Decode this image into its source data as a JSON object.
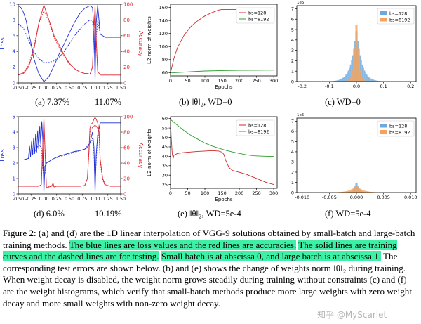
{
  "colors": {
    "blue": "#1f2fd8",
    "red": "#e0262f",
    "hist_blue": "#6fa8dc",
    "hist_orange": "#f5a35a",
    "line_red": "#d62728",
    "line_green": "#2ca02c",
    "highlight": "#3df0a6"
  },
  "panels": {
    "a": {
      "caption": "(a) 7.37%",
      "caption2": "11.07%",
      "ylabel_left": "Loss",
      "ylabel_right": "Accuracy",
      "xticks": [
        "-0.50",
        "-0.25",
        "0.00",
        "0.25",
        "0.50",
        "0.75",
        "1.00",
        "1.25",
        "1.50"
      ],
      "left_ticks": [
        "0",
        "2",
        "4",
        "6",
        "8",
        "10"
      ],
      "right_ticks": [
        "0",
        "20",
        "40",
        "60",
        "80",
        "100"
      ]
    },
    "b": {
      "caption": "(b) ‖θ‖₂, WD=0",
      "xlabel": "Epochs",
      "ylabel": "L2-norm of weights",
      "xticks": [
        "0",
        "50",
        "100",
        "150",
        "200",
        "250",
        "300"
      ],
      "yticks": [
        "60",
        "80",
        "100",
        "120",
        "140",
        "160"
      ],
      "legend": [
        "bs=128",
        "bs=8192"
      ]
    },
    "c": {
      "caption": "(c)  WD=0",
      "exponent": "1e5",
      "xticks": [
        "-0.2",
        "-0.1",
        "0.0",
        "0.1",
        "0.2"
      ],
      "yticks": [
        "0",
        "1",
        "2",
        "3",
        "4",
        "5",
        "6",
        "7"
      ],
      "legend": [
        "bs=128",
        "bs=8192"
      ]
    },
    "d": {
      "caption": "(d)  6.0%",
      "caption2": "10.19%",
      "ylabel_left": "Loss",
      "ylabel_right": "Accuracy",
      "xticks": [
        "-0.50",
        "-0.25",
        "0.00",
        "0.25",
        "0.50",
        "0.75",
        "1.00",
        "1.25",
        "1.50"
      ],
      "left_ticks": [
        "0",
        "1",
        "2",
        "3",
        "4",
        "5"
      ],
      "right_ticks": [
        "0",
        "20",
        "40",
        "60",
        "80",
        "100"
      ]
    },
    "e": {
      "caption": "(e) ‖θ‖₂, WD=5e-4",
      "xlabel": "Epochs",
      "ylabel": "L2-norm of weights",
      "xticks": [
        "0",
        "50",
        "100",
        "150",
        "200",
        "250",
        "300"
      ],
      "yticks": [
        "25",
        "30",
        "35",
        "40",
        "45",
        "50",
        "55",
        "60"
      ],
      "legend": [
        "bs=128",
        "bs=8192"
      ]
    },
    "f": {
      "caption": "(f)  WD=5e-4",
      "exponent": "1e5",
      "xticks": [
        "-0.010",
        "-0.005",
        "0.000",
        "0.005",
        "0.010"
      ],
      "yticks": [
        "0",
        "1",
        "2",
        "3",
        "4",
        "5",
        "6",
        "7"
      ],
      "legend": [
        "bs=128",
        "bs=8192"
      ]
    }
  },
  "caption": {
    "p1": "Figure 2: (a) and (d) are the 1D linear interpolation of VGG-9 solutions obtained by small-batch and large-batch training methods. ",
    "h1": "The blue lines are loss values and the red lines are accuracies.",
    "p2": " ",
    "h2": "The solid lines are training curves and the dashed lines are for testing.",
    "p3": " ",
    "h3": "Small batch is at abscissa 0, and large batch is at abscissa 1.",
    "p4": " The corresponding test errors are shown below. (b) and (e) shows the change of weights norm ‖θ‖₂ during training. When weight decay is disabled, the weight norm grows steadily during training without constraints (c) and (f) are the weight histograms, which verify that small-batch methods produce more large weights with zero weight decay and more small weights with non-zero weight decay."
  },
  "watermark": "知乎 @MyScarlet",
  "chart_data": [
    {
      "id": "a",
      "type": "line",
      "xlim": [
        -0.5,
        1.5
      ],
      "ylim_left": [
        0,
        10
      ],
      "ylim_right": [
        0,
        100
      ],
      "series": [
        {
          "axis": "left",
          "style": "solid",
          "color": "blue",
          "x": [
            -0.5,
            -0.45,
            -0.4,
            -0.35,
            -0.3,
            -0.25,
            -0.2,
            -0.1,
            0.0,
            0.1,
            0.2,
            0.3,
            0.4,
            0.5,
            0.6,
            0.7,
            0.8,
            0.9,
            0.95,
            0.98,
            1.0,
            1.02,
            1.05,
            1.1,
            1.2,
            1.3,
            1.4,
            1.5
          ],
          "y": [
            9.8,
            9.6,
            9.0,
            8.0,
            6.5,
            5.0,
            3.2,
            1.2,
            0.15,
            0.8,
            2.2,
            3.7,
            5.0,
            6.4,
            7.7,
            8.8,
            9.5,
            9.8,
            9.6,
            7.0,
            0.2,
            7.5,
            9.9,
            6.2,
            5.8,
            5.8,
            5.8,
            5.8
          ]
        },
        {
          "axis": "left",
          "style": "dashed",
          "color": "blue",
          "x": [
            -0.5,
            -0.4,
            -0.3,
            -0.2,
            -0.1,
            0.0,
            0.1,
            0.2,
            0.3,
            0.4,
            0.5,
            0.6,
            0.7,
            0.8,
            0.9,
            0.95,
            0.98,
            1.0,
            1.02,
            1.05,
            1.1
          ],
          "y": [
            7.5,
            7.0,
            5.5,
            4.0,
            3.1,
            2.6,
            2.6,
            2.8,
            3.3,
            4.0,
            5.0,
            6.0,
            6.8,
            7.5,
            8.0,
            7.8,
            5.5,
            2.6,
            5.5,
            8.0,
            6.2
          ]
        },
        {
          "axis": "right",
          "style": "solid",
          "color": "red",
          "x": [
            -0.5,
            -0.4,
            -0.3,
            -0.2,
            -0.1,
            0.0,
            0.1,
            0.2,
            0.3,
            0.4,
            0.5,
            0.6,
            0.7,
            0.8,
            0.85,
            0.9,
            0.95,
            0.98,
            1.0,
            1.02,
            1.05,
            1.1,
            1.2,
            1.3,
            1.4,
            1.5
          ],
          "y": [
            10,
            12,
            20,
            40,
            75,
            99,
            80,
            60,
            48,
            35,
            25,
            18,
            14,
            12,
            12,
            11,
            20,
            70,
            99,
            60,
            15,
            10,
            10,
            10,
            10,
            10
          ]
        },
        {
          "axis": "right",
          "style": "dashed",
          "color": "red",
          "x": [
            -0.5,
            -0.4,
            -0.3,
            -0.2,
            -0.1,
            0.0,
            0.1,
            0.2,
            0.3,
            0.4,
            0.5,
            0.6,
            0.7,
            0.8,
            0.9,
            0.95,
            0.98,
            1.0,
            1.02,
            1.05,
            1.1
          ],
          "y": [
            10,
            13,
            22,
            45,
            75,
            92,
            78,
            58,
            45,
            33,
            24,
            18,
            14,
            12,
            11,
            20,
            65,
            89,
            55,
            14,
            10
          ]
        }
      ]
    },
    {
      "id": "b",
      "type": "line",
      "xlim": [
        0,
        310
      ],
      "ylim": [
        55,
        165
      ],
      "xlabel": "Epochs",
      "ylabel": "L2-norm of weights",
      "series": [
        {
          "name": "bs=128",
          "color": "line_red",
          "x": [
            0,
            10,
            20,
            40,
            60,
            80,
            100,
            120,
            140,
            150,
            160,
            200,
            250,
            300
          ],
          "y": [
            60,
            82,
            98,
            118,
            131,
            140,
            147,
            152,
            156,
            157,
            157,
            157,
            157,
            157
          ]
        },
        {
          "name": "bs=8192",
          "color": "line_green",
          "x": [
            0,
            30,
            60,
            100,
            150,
            200,
            250,
            300
          ],
          "y": [
            59.5,
            60.5,
            61.5,
            62.5,
            63.2,
            63.5,
            63.7,
            63.8
          ]
        }
      ]
    },
    {
      "id": "c",
      "type": "histogram",
      "xlim": [
        -0.22,
        0.22
      ],
      "ylim": [
        0,
        7.3
      ],
      "exponent": "1e5",
      "series": [
        {
          "name": "bs=128",
          "color": "hist_blue",
          "center": 0.0,
          "width": 0.035,
          "peak": 5.4
        },
        {
          "name": "bs=8192",
          "color": "hist_orange",
          "center": 0.0,
          "width": 0.014,
          "peak": 7.1
        }
      ]
    },
    {
      "id": "d",
      "type": "line",
      "xlim": [
        -0.5,
        1.5
      ],
      "ylim_left": [
        0,
        5
      ],
      "ylim_right": [
        0,
        100
      ],
      "series": [
        {
          "axis": "left",
          "style": "solid",
          "color": "blue",
          "x": [
            -0.5,
            -0.45,
            -0.4,
            -0.35,
            -0.3,
            -0.28,
            -0.26,
            -0.24,
            -0.22,
            -0.2,
            -0.18,
            -0.16,
            -0.14,
            -0.12,
            -0.1,
            -0.08,
            -0.06,
            -0.04,
            -0.02,
            0.0,
            0.02,
            0.05,
            0.1,
            0.2,
            0.3,
            0.4,
            0.5,
            0.6,
            0.7,
            0.8,
            0.85,
            0.9,
            0.95,
            0.98,
            1.0,
            1.02,
            1.05,
            1.1,
            1.2,
            1.3,
            1.4,
            1.5
          ],
          "y": [
            2.2,
            2.2,
            2.2,
            2.25,
            2.3,
            3.1,
            2.4,
            3.4,
            2.5,
            3.6,
            2.6,
            3.9,
            2.7,
            4.1,
            2.9,
            4.4,
            3.2,
            4.7,
            3.5,
            0.05,
            1.8,
            2.0,
            2.1,
            2.3,
            2.45,
            2.55,
            2.65,
            2.75,
            2.8,
            2.9,
            3.0,
            3.3,
            4.0,
            3.0,
            0.05,
            2.5,
            3.8,
            4.6,
            4.6,
            4.6,
            4.6,
            4.6
          ]
        },
        {
          "axis": "left",
          "style": "dashed",
          "color": "blue",
          "x": [
            -0.5,
            -0.4,
            -0.3,
            -0.2,
            -0.1,
            -0.05,
            0.0,
            0.05,
            0.1,
            0.2,
            0.4,
            0.6,
            0.8,
            0.9,
            0.95,
            0.98,
            1.0,
            1.02,
            1.05,
            1.1
          ],
          "y": [
            2.2,
            2.2,
            2.3,
            2.6,
            3.2,
            3.0,
            0.9,
            2.0,
            2.1,
            2.3,
            2.5,
            2.7,
            2.9,
            3.3,
            3.6,
            2.5,
            0.6,
            2.0,
            3.8,
            4.6
          ]
        },
        {
          "axis": "right",
          "style": "solid",
          "color": "red",
          "x": [
            -0.5,
            -0.4,
            -0.3,
            -0.2,
            -0.1,
            -0.05,
            0.0,
            0.05,
            0.1,
            0.15,
            0.18,
            0.2,
            0.25,
            0.3,
            0.5,
            0.7,
            0.8,
            0.85,
            0.88,
            0.9,
            0.92,
            0.95,
            0.98,
            1.0,
            1.02,
            1.05,
            1.08,
            1.1,
            1.15,
            1.2,
            1.3,
            1.4,
            1.5
          ],
          "y": [
            10,
            10,
            10,
            10,
            10,
            12,
            99,
            8,
            9,
            10,
            14,
            9,
            10,
            10,
            10,
            10,
            11,
            20,
            55,
            85,
            90,
            92,
            97,
            99,
            97,
            92,
            80,
            45,
            20,
            12,
            10,
            10,
            10
          ]
        },
        {
          "axis": "right",
          "style": "dashed",
          "color": "red",
          "x": [
            -0.5,
            -0.3,
            -0.1,
            -0.05,
            0.0,
            0.05,
            0.1,
            0.3,
            0.5,
            0.7,
            0.8,
            0.85,
            0.88,
            0.9,
            0.92,
            0.95,
            0.98,
            1.0,
            1.02,
            1.05,
            1.08,
            1.1,
            1.15,
            1.2
          ],
          "y": [
            10,
            10,
            10,
            12,
            94,
            8,
            10,
            10,
            10,
            10,
            11,
            20,
            52,
            80,
            84,
            86,
            88,
            89,
            88,
            85,
            72,
            40,
            18,
            10
          ]
        }
      ]
    },
    {
      "id": "e",
      "type": "line",
      "xlim": [
        0,
        310
      ],
      "ylim": [
        23,
        61
      ],
      "xlabel": "Epochs",
      "ylabel": "L2-norm of weights",
      "series": [
        {
          "name": "bs=128",
          "color": "line_red",
          "x": [
            0,
            2,
            5,
            8,
            10,
            20,
            40,
            60,
            80,
            100,
            120,
            140,
            150,
            155,
            160,
            170,
            180,
            200,
            220,
            240,
            260,
            280,
            300
          ],
          "y": [
            58,
            50,
            41,
            39,
            40.5,
            41.5,
            42,
            42.3,
            42.6,
            42.8,
            43,
            42.8,
            42.2,
            41,
            38,
            34,
            32.5,
            31.5,
            30.5,
            29,
            27.5,
            26,
            25
          ]
        },
        {
          "name": "bs=8192",
          "color": "line_green",
          "x": [
            0,
            20,
            40,
            60,
            80,
            100,
            120,
            140,
            160,
            180,
            200,
            220,
            240,
            260,
            280,
            300
          ],
          "y": [
            59.5,
            56.5,
            53.5,
            51,
            49,
            47,
            45.5,
            44.3,
            43.2,
            42.3,
            41.5,
            40.8,
            40.3,
            40.1,
            40,
            39.9
          ]
        }
      ]
    },
    {
      "id": "f",
      "type": "histogram",
      "xlim": [
        -0.011,
        0.011
      ],
      "ylim": [
        0,
        7.3
      ],
      "exponent": "1e5",
      "series": [
        {
          "name": "bs=128",
          "color": "hist_blue",
          "center": 0.0,
          "width": 0.0009,
          "peak": 1.15
        },
        {
          "name": "bs=8192",
          "color": "hist_orange",
          "center": 0.0,
          "width": 0.0022,
          "peak": 0.7
        }
      ]
    }
  ]
}
